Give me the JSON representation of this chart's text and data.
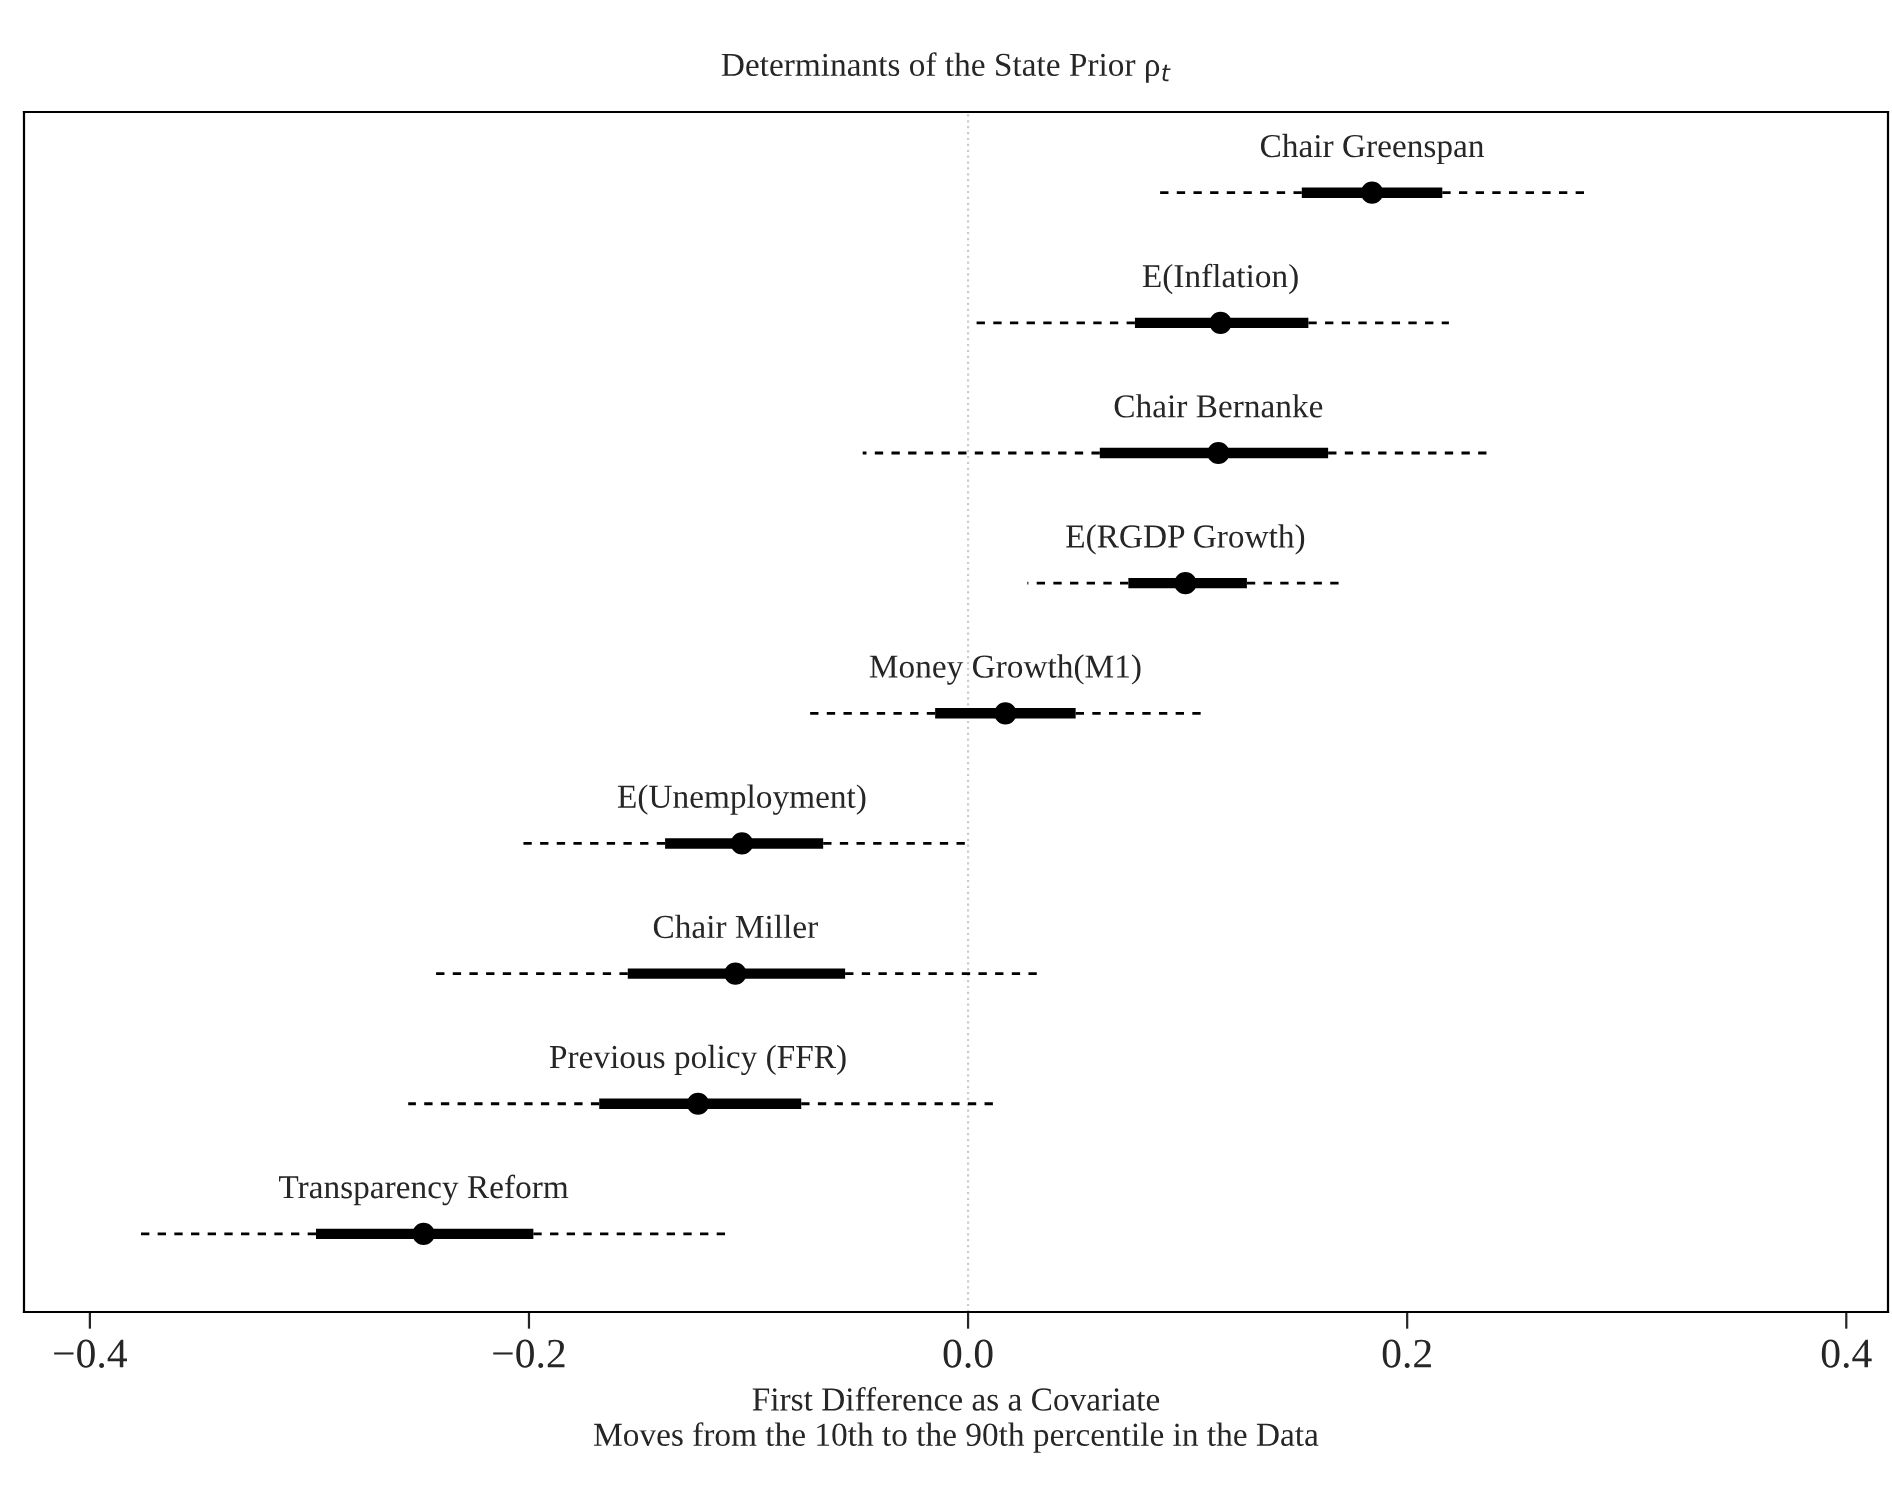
{
  "chart_data": {
    "type": "box",
    "orientation": "horizontal",
    "title": "Determinants of the State Prior ρ$_{t}$",
    "xlabel": "First Difference as a Covariate\nMoves from the 10th to the 90th percentile in the Data",
    "categories": [
      null,
      null,
      null,
      null,
      null,
      null,
      null,
      null,
      null
    ],
    "annotations": [
      "Chair Greenspan",
      "E(Inflation)",
      "Chair Bernanke",
      "E(RGDP Growth)",
      "Money Growth(M1)",
      "E(Unemployment)",
      "Chair Miller",
      "Previous policy (FFR)",
      "Transparency Reform"
    ],
    "boxes": [
      {
        "low": 0.084,
        "q1": 0.152,
        "median": 0.184,
        "q3": 0.216,
        "high": 0.281,
        "mean": 0.184
      },
      {
        "low": 0.002,
        "q1": 0.076,
        "median": 0.115,
        "q3": 0.155,
        "high": 0.219,
        "mean": 0.115
      },
      {
        "low": -0.048,
        "q1": 0.06,
        "median": 0.114,
        "q3": 0.164,
        "high": 0.239,
        "mean": 0.114
      },
      {
        "low": 0.027,
        "q1": 0.073,
        "median": 0.099,
        "q3": 0.127,
        "high": 0.171,
        "mean": 0.099
      },
      {
        "low": -0.073,
        "q1": -0.015,
        "median": 0.017,
        "q3": 0.049,
        "high": 0.106,
        "mean": 0.017
      },
      {
        "low": -0.206,
        "q1": -0.138,
        "median": -0.103,
        "q3": -0.066,
        "high": 0.0,
        "mean": -0.103
      },
      {
        "low": -0.244,
        "q1": -0.155,
        "median": -0.106,
        "q3": -0.056,
        "high": 0.033,
        "mean": -0.106
      },
      {
        "low": -0.255,
        "q1": -0.168,
        "median": -0.123,
        "q3": -0.076,
        "high": 0.012,
        "mean": -0.123
      },
      {
        "low": -0.377,
        "q1": -0.297,
        "median": -0.248,
        "q3": -0.198,
        "high": -0.109,
        "mean": -0.248
      }
    ],
    "color": "#000000",
    "line_style": "dashed",
    "marker": "circle",
    "xlim": [
      -0.43,
      0.419
    ],
    "xticks": [
      {
        "value": -0.4,
        "label": "−0.4"
      },
      {
        "value": -0.2,
        "label": "−0.2"
      },
      {
        "value": 0.0,
        "label": "0.0"
      },
      0.2,
      0.4
    ],
    "ref_lines": [
      {
        "axis": "x",
        "value": 0,
        "color": "#cccccc",
        "line_style": "dotted"
      }
    ],
    "tick_labels": "x",
    "grid": false
  }
}
